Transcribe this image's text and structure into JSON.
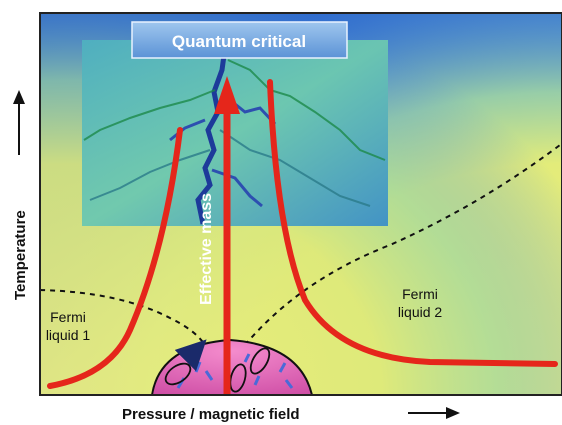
{
  "title": "Quantum critical",
  "y_axis_label": "Temperature",
  "x_axis_label": "Pressure / magnetic field",
  "center_arrow_label": "Effective mass",
  "region_left": {
    "line1": "Fermi",
    "line2": "liquid 1"
  },
  "region_right": {
    "line1": "Fermi",
    "line2": "liquid 2"
  },
  "colors": {
    "background_blue": "#2f6fcf",
    "fermi_yellow": "#e9ec7a",
    "effective_mass_red": "#e5261b",
    "dome_pink": "#e070b8",
    "fractal_teal": "#5fc0b8"
  }
}
